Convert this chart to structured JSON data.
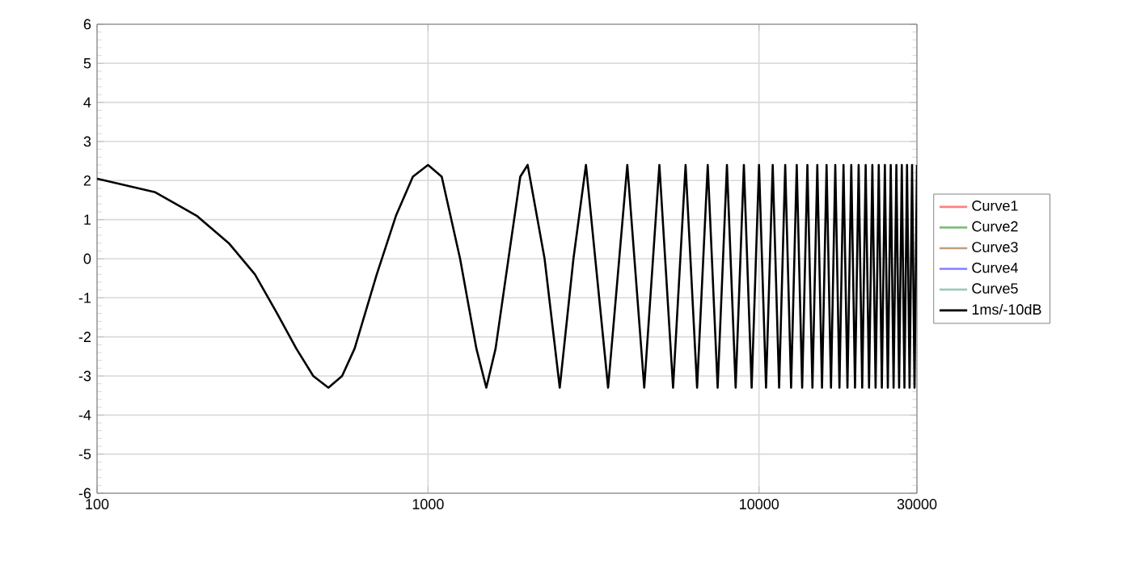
{
  "chart_data": {
    "type": "line",
    "xlim": [
      100,
      30000
    ],
    "ylim": [
      -6,
      6
    ],
    "log": "x",
    "xticks": [
      100,
      1000,
      10000,
      30000
    ],
    "yticks": [
      -6,
      -5,
      -4,
      -3,
      -2,
      -1,
      0,
      1,
      2,
      3,
      4,
      5,
      6
    ],
    "grid": true,
    "legend": "right",
    "marker": "none",
    "line_style": "solid",
    "series": [
      {
        "name": "Curve1",
        "color": "#ff7f7f"
      },
      {
        "name": "Curve2",
        "color": "#7fbf7f"
      },
      {
        "name": "Curve3",
        "color": "#bf9f7f"
      },
      {
        "name": "Curve4",
        "color": "#7f7fff"
      },
      {
        "name": "Curve5",
        "color": "#9fc7bf"
      },
      {
        "name": "1ms/-10dB",
        "color": "#000000",
        "x": [
          100,
          150,
          200,
          250,
          300,
          350,
          400,
          450,
          500,
          550,
          600,
          700,
          800,
          900,
          1000,
          1100,
          1250,
          1400,
          1500,
          1600,
          1750,
          1900,
          2000,
          2250,
          2500,
          2750,
          3000,
          3500,
          4000,
          4500,
          5000,
          5500,
          6000,
          6500,
          7000,
          7500,
          8000,
          8500,
          9000,
          9500,
          10000,
          10500,
          11000,
          11500,
          12000,
          12500,
          13000,
          13500,
          14000,
          14500,
          15000,
          15500,
          16000,
          16500,
          17000,
          17500,
          18000,
          18500,
          19000,
          19500,
          20000,
          20500,
          21000,
          21500,
          22000,
          22500,
          23000,
          23500,
          24000,
          24500,
          25000,
          25500,
          26000,
          26500,
          27000,
          27500,
          28000,
          28500,
          29000,
          29500,
          30000
        ],
        "values": [
          2.05,
          1.7,
          1.1,
          0.4,
          -0.4,
          -1.4,
          -2.3,
          -3.0,
          -3.3,
          -3.0,
          -2.3,
          -0.4,
          1.1,
          2.1,
          2.4,
          2.1,
          0,
          -2.3,
          -3.3,
          -2.3,
          0,
          2.1,
          2.4,
          0,
          -3.3,
          0,
          2.4,
          -3.3,
          2.4,
          -3.3,
          2.4,
          -3.3,
          2.4,
          -3.3,
          2.4,
          -3.3,
          2.4,
          -3.3,
          2.4,
          -3.3,
          2.4,
          -3.3,
          2.4,
          -3.3,
          2.4,
          -3.3,
          2.4,
          -3.3,
          2.4,
          -3.3,
          2.4,
          -3.3,
          2.4,
          -3.3,
          2.4,
          -3.3,
          2.4,
          -3.3,
          2.4,
          -3.3,
          2.4,
          -3.3,
          2.4,
          -3.3,
          2.4,
          -3.3,
          2.4,
          -3.3,
          2.4,
          -3.3,
          2.4,
          -3.3,
          2.4,
          -3.3,
          2.4,
          -3.3,
          2.4,
          -3.3,
          2.4,
          -3.3,
          2.4
        ]
      }
    ]
  }
}
